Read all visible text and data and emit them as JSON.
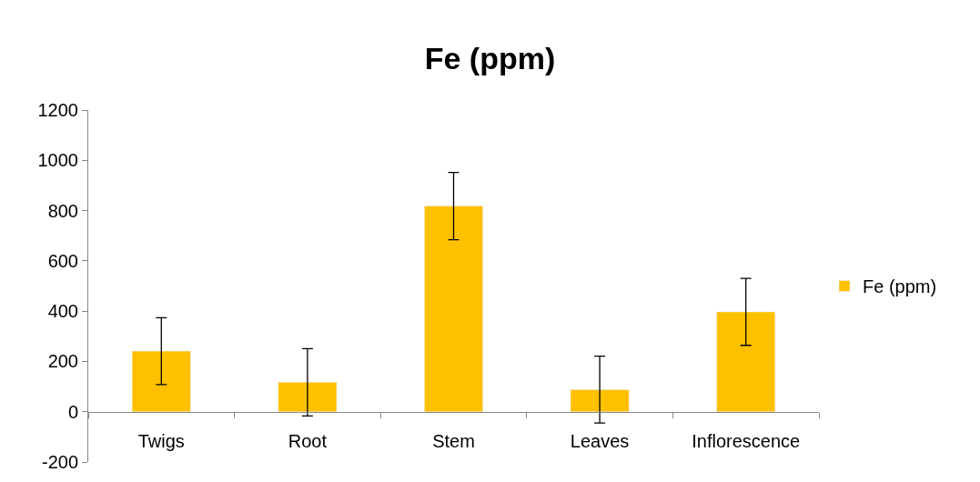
{
  "chart_data": {
    "type": "bar",
    "title": "Fe (ppm)",
    "categories": [
      "Twigs",
      "Root",
      "Stem",
      "Leaves",
      "Inflorescence"
    ],
    "series": [
      {
        "name": "Fe (ppm)",
        "color": "#ffc000",
        "values": [
          241,
          117,
          818,
          88,
          397
        ],
        "errors": [
          133,
          134,
          134,
          133,
          133
        ]
      }
    ],
    "ylim": [
      -200,
      1200
    ],
    "yticks": [
      -200,
      0,
      200,
      400,
      600,
      800,
      1000,
      1200
    ],
    "legend": "right"
  }
}
